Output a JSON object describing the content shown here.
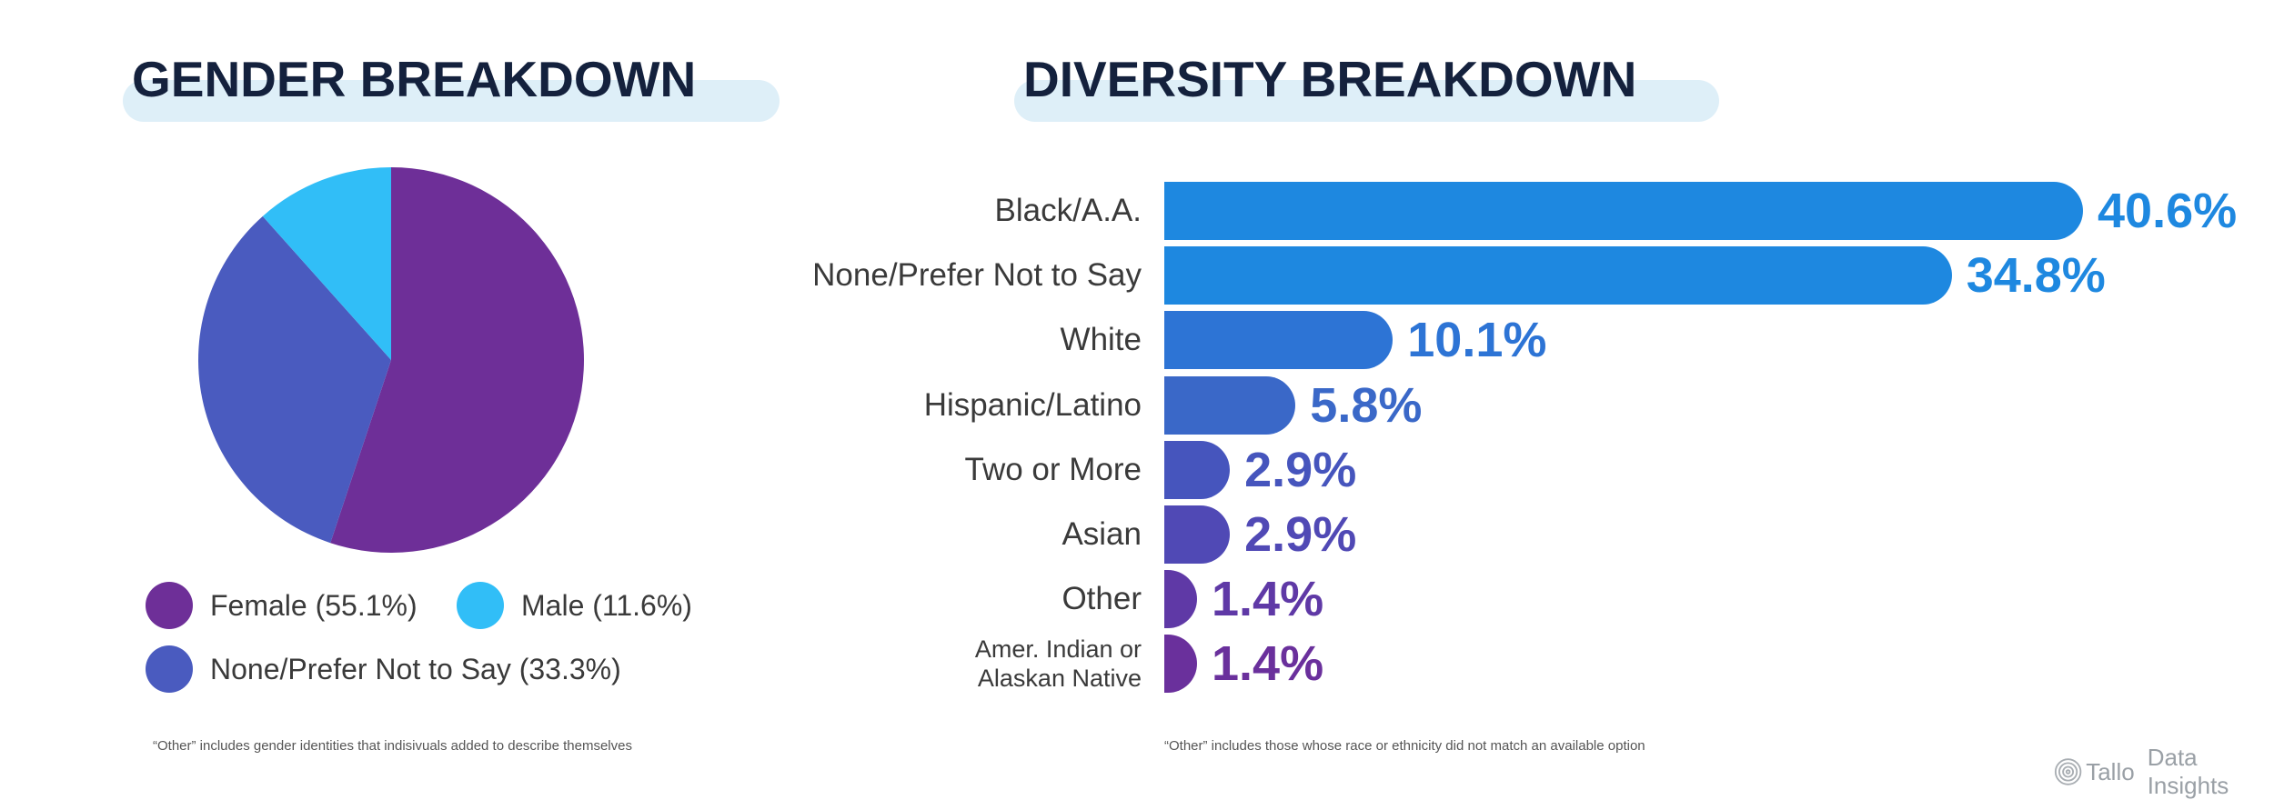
{
  "gender": {
    "title": "GENDER BREAKDOWN",
    "footnote": "“Other” includes gender identities that indisivuals added to describe themselves"
  },
  "diversity": {
    "title": "DIVERSITY BREAKDOWN",
    "footnote": "“Other” includes those whose race or ethnicity did not match an available option"
  },
  "brand": {
    "logo_text": "Tallo",
    "tagline": "Data Insights",
    "logo_icon": "fingerprint-icon"
  },
  "colors": {
    "title_text": "#14213d",
    "title_bar": "#deeff8",
    "female": "#6e2f98",
    "male": "#31bef7",
    "none_prefer": "#4a5bbf"
  },
  "chart_data": [
    {
      "type": "pie",
      "title": "GENDER BREAKDOWN",
      "slices": [
        {
          "name": "Female",
          "value": 55.1,
          "label": "Female (55.1%)",
          "color": "#6e2f98"
        },
        {
          "name": "None/Prefer Not to Say",
          "value": 33.3,
          "label": "None/Prefer Not to Say (33.3%)",
          "color": "#4a5bbf"
        },
        {
          "name": "Male",
          "value": 11.6,
          "label": "Male (11.6%)",
          "color": "#31bef7"
        }
      ],
      "start": "top",
      "direction": "clockwise",
      "legend_position": "bottom"
    },
    {
      "type": "bar",
      "orientation": "horizontal",
      "title": "DIVERSITY BREAKDOWN",
      "categories": [
        "Black/A.A.",
        "None/Prefer Not to Say",
        "White",
        "Hispanic/Latino",
        "Two or More",
        "Asian",
        "Other",
        "Amer. Indian or Alaskan Native"
      ],
      "values": [
        40.6,
        34.8,
        10.1,
        5.8,
        2.9,
        2.9,
        1.4,
        1.4
      ],
      "value_labels": [
        "40.6%",
        "34.8%",
        "10.1%",
        "5.8%",
        "2.9%",
        "2.9%",
        "1.4%",
        "1.4%"
      ],
      "colors": [
        "#1e88e0",
        "#1e88e0",
        "#2d74d5",
        "#3a68c8",
        "#4655bd",
        "#5049b5",
        "#5f39a6",
        "#6a309c"
      ],
      "xlim": [
        0,
        40.6
      ],
      "grid": false,
      "axes_visible": false
    }
  ]
}
